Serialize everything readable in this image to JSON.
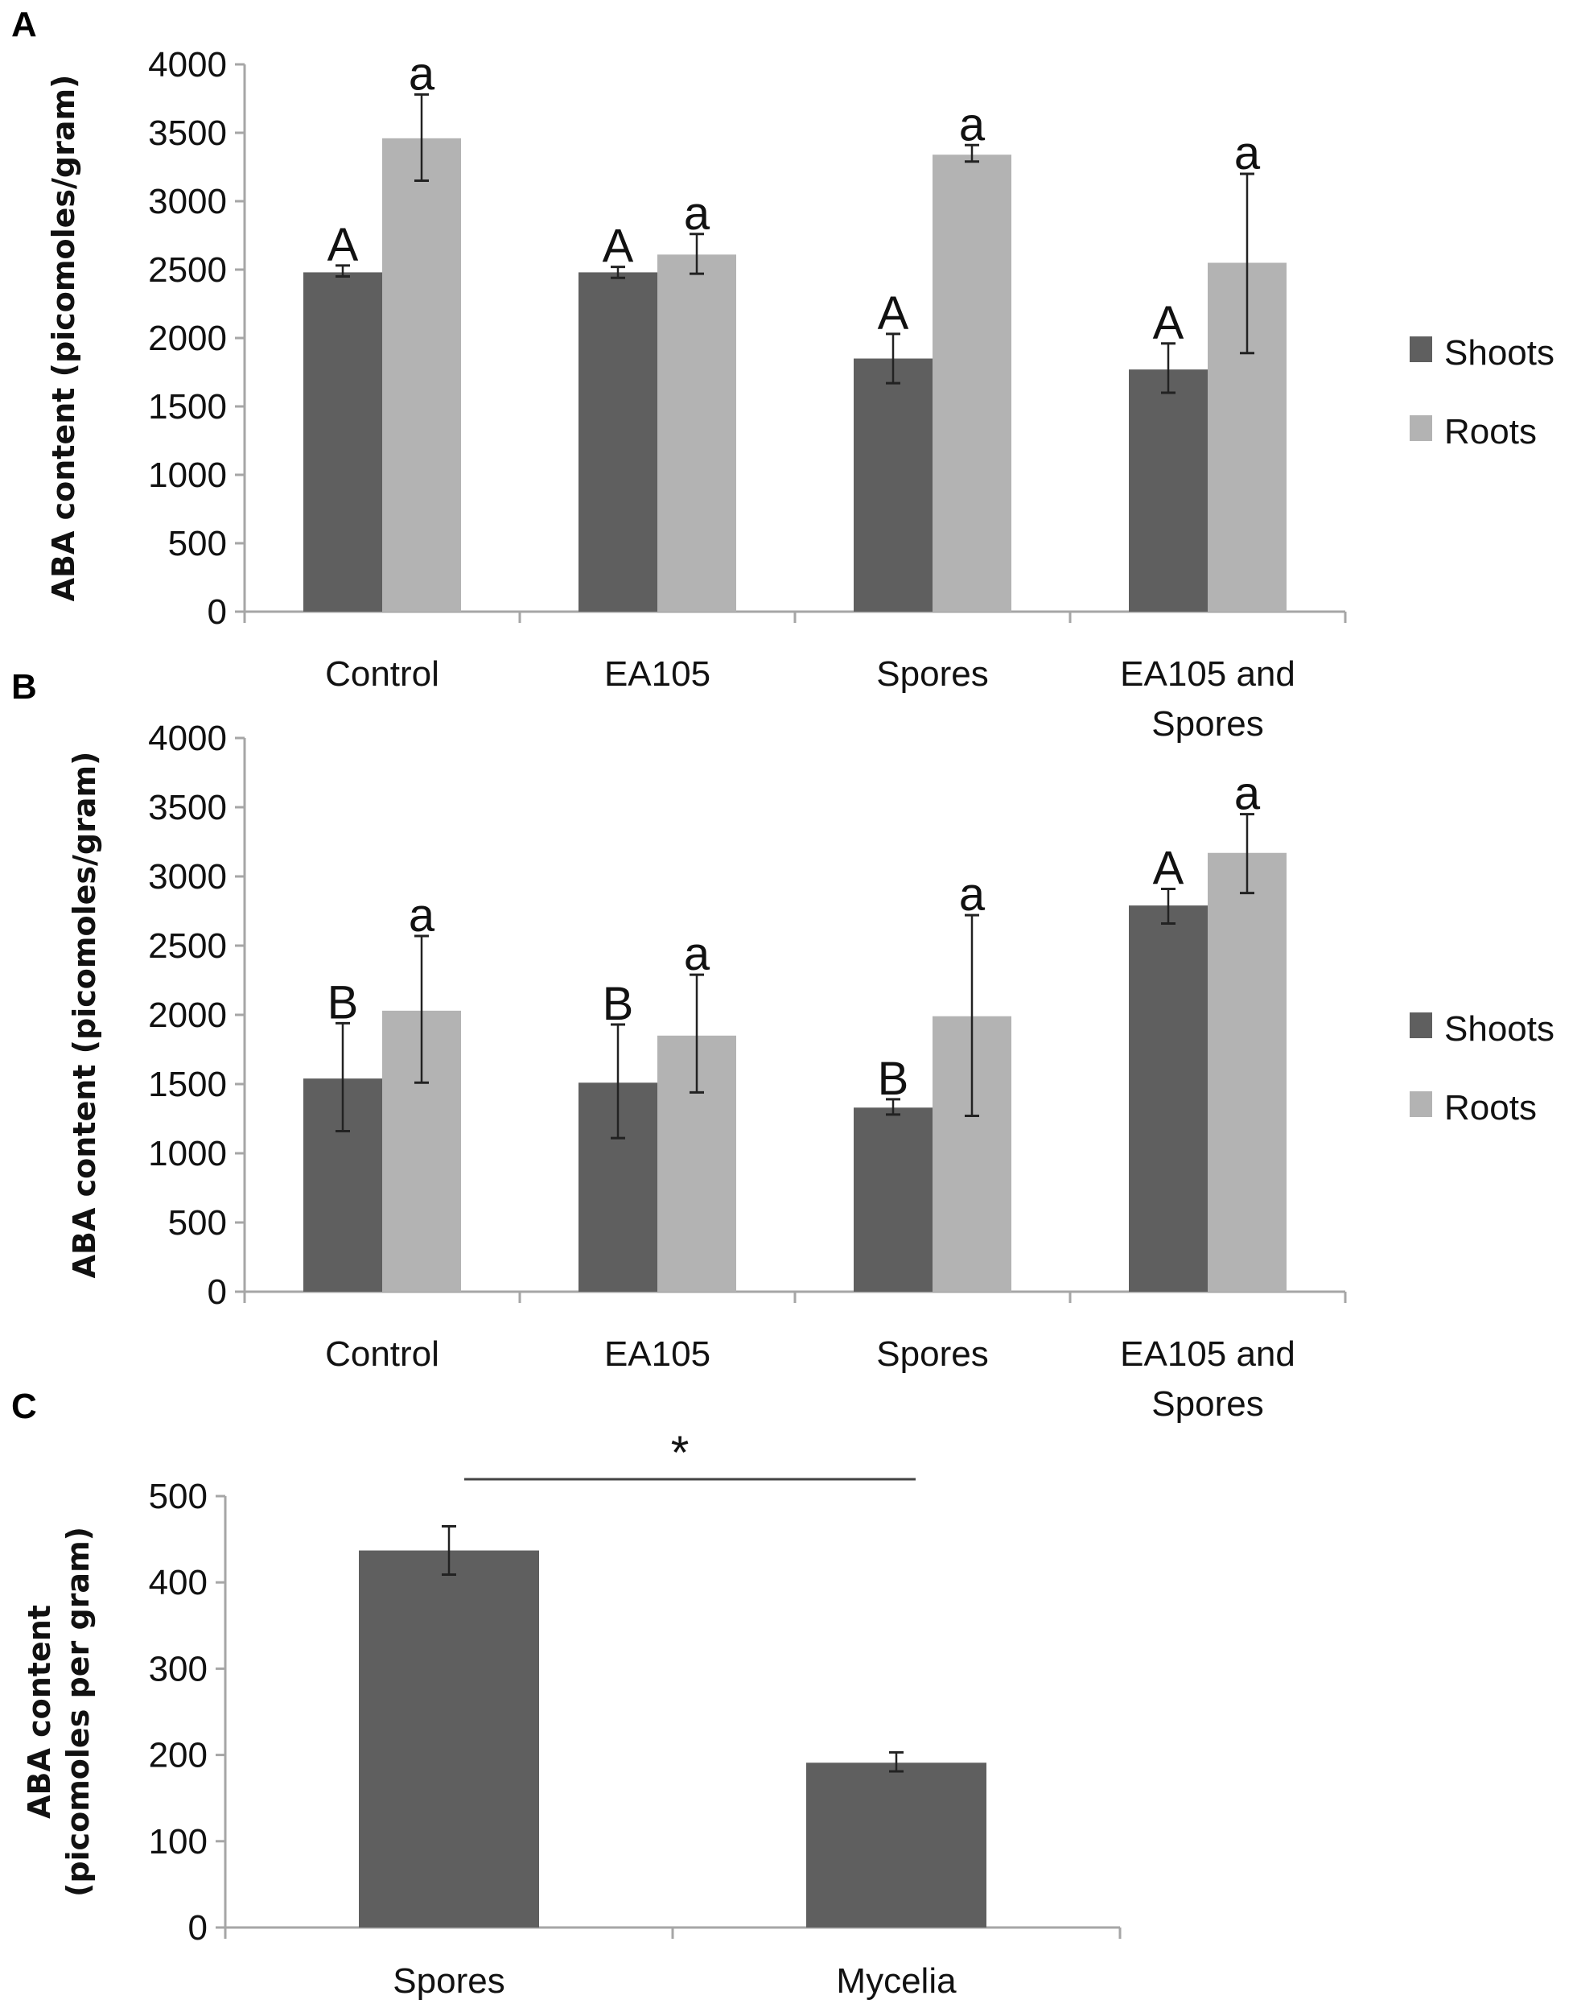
{
  "colors": {
    "shoots": "#5f5f5f",
    "roots": "#b3b3b3",
    "axis": "#a6a6a6",
    "error": "#222222"
  },
  "chart_data": [
    {
      "panel": "A",
      "type": "bar",
      "ylabel": "ABA content (picomoles/gram)",
      "ylim": [
        0,
        4000
      ],
      "yticks": [
        0,
        500,
        1000,
        1500,
        2000,
        2500,
        3000,
        3500,
        4000
      ],
      "categories": [
        [
          "Control"
        ],
        [
          "EA105"
        ],
        [
          "Spores"
        ],
        [
          "EA105 and",
          "Spores"
        ]
      ],
      "legend": "right",
      "series": [
        {
          "name": "Shoots",
          "values": [
            2480,
            2480,
            1850,
            1770
          ],
          "err_low": [
            2450,
            2440,
            1670,
            1600
          ],
          "err_high": [
            2530,
            2520,
            2030,
            1960
          ],
          "letters": [
            "A",
            "A",
            "A",
            "A"
          ]
        },
        {
          "name": "Roots",
          "values": [
            3460,
            2610,
            3340,
            2550
          ],
          "err_low": [
            3150,
            2470,
            3290,
            1890
          ],
          "err_high": [
            3780,
            2760,
            3410,
            3200
          ],
          "letters": [
            "a",
            "a",
            "a",
            "a"
          ]
        }
      ]
    },
    {
      "panel": "B",
      "type": "bar",
      "ylabel": "ABA content (picomoles/gram)",
      "ylim": [
        0,
        4000
      ],
      "yticks": [
        0,
        500,
        1000,
        1500,
        2000,
        2500,
        3000,
        3500,
        4000
      ],
      "categories": [
        [
          "Control"
        ],
        [
          "EA105"
        ],
        [
          "Spores"
        ],
        [
          "EA105 and",
          "Spores"
        ]
      ],
      "legend": "right",
      "series": [
        {
          "name": "Shoots",
          "values": [
            1540,
            1510,
            1330,
            2790
          ],
          "err_low": [
            1160,
            1110,
            1280,
            2660
          ],
          "err_high": [
            1940,
            1930,
            1390,
            2910
          ],
          "letters": [
            "B",
            "B",
            "B",
            "A"
          ]
        },
        {
          "name": "Roots",
          "values": [
            2030,
            1850,
            1990,
            3170
          ],
          "err_low": [
            1510,
            1440,
            1270,
            2880
          ],
          "err_high": [
            2570,
            2290,
            2720,
            3450
          ],
          "letters": [
            "a",
            "a",
            "a",
            "a"
          ]
        }
      ]
    },
    {
      "panel": "C",
      "type": "bar",
      "ylabel": [
        "ABA content",
        "(picomoles per gram)"
      ],
      "ylim": [
        0,
        500
      ],
      "yticks": [
        0,
        100,
        200,
        300,
        400,
        500
      ],
      "categories": [
        [
          "Spores"
        ],
        [
          "Mycelia"
        ]
      ],
      "significance": "*",
      "series": [
        {
          "name": "ABA",
          "values": [
            437,
            191
          ],
          "err_low": [
            409,
            181
          ],
          "err_high": [
            465,
            203
          ]
        }
      ]
    }
  ]
}
